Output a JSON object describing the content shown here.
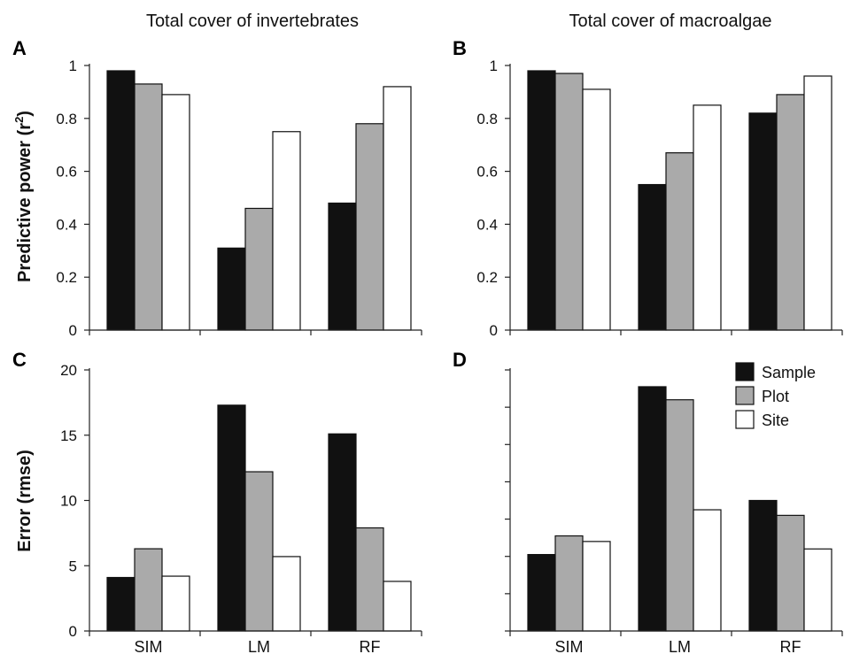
{
  "figure": {
    "col_titles": [
      "Total cover of invertebrates",
      "Total cover of macroalgae"
    ],
    "ylabel_top": "Predictive power (r²)",
    "ylabel_top_main": "Predictive power (r",
    "ylabel_top_sup": "2",
    "ylabel_top_close": ")",
    "ylabel_bottom": "Error (rmse)"
  },
  "legend": {
    "items": [
      {
        "label": "Sample",
        "color": "#111111"
      },
      {
        "label": "Plot",
        "color": "#aaaaaa"
      },
      {
        "label": "Site",
        "color": "#ffffff"
      }
    ]
  },
  "chart_data": [
    {
      "panel": "A",
      "type": "bar",
      "title": "Total cover of invertebrates",
      "ylabel": "Predictive power (r²)",
      "categories": [
        "SIM",
        "LM",
        "RF"
      ],
      "series": [
        {
          "name": "Sample",
          "color": "#111111",
          "values": [
            0.98,
            0.31,
            0.48
          ]
        },
        {
          "name": "Plot",
          "color": "#aaaaaa",
          "values": [
            0.93,
            0.46,
            0.78
          ]
        },
        {
          "name": "Site",
          "color": "#ffffff",
          "values": [
            0.89,
            0.75,
            0.92
          ]
        }
      ],
      "ylim": [
        0,
        1
      ],
      "yticks": [
        0,
        0.2,
        0.4,
        0.6,
        0.8,
        1
      ],
      "ytick_labels": [
        "0",
        "0.2",
        "0.4",
        "0.6",
        "0.8",
        "1"
      ],
      "xtick_labels": []
    },
    {
      "panel": "B",
      "type": "bar",
      "title": "Total cover of macroalgae",
      "categories": [
        "SIM",
        "LM",
        "RF"
      ],
      "series": [
        {
          "name": "Sample",
          "color": "#111111",
          "values": [
            0.98,
            0.55,
            0.82
          ]
        },
        {
          "name": "Plot",
          "color": "#aaaaaa",
          "values": [
            0.97,
            0.67,
            0.89
          ]
        },
        {
          "name": "Site",
          "color": "#ffffff",
          "values": [
            0.91,
            0.85,
            0.96
          ]
        }
      ],
      "ylim": [
        0,
        1
      ],
      "yticks": [
        0,
        0.2,
        0.4,
        0.6,
        0.8,
        1
      ],
      "ytick_labels": [
        "0",
        "0.2",
        "0.4",
        "0.6",
        "0.8",
        "1"
      ],
      "xtick_labels": []
    },
    {
      "panel": "C",
      "type": "bar",
      "ylabel": "Error (rmse)",
      "categories": [
        "SIM",
        "LM",
        "RF"
      ],
      "series": [
        {
          "name": "Sample",
          "color": "#111111",
          "values": [
            4.1,
            17.3,
            15.1
          ]
        },
        {
          "name": "Plot",
          "color": "#aaaaaa",
          "values": [
            6.3,
            12.2,
            7.9
          ]
        },
        {
          "name": "Site",
          "color": "#ffffff",
          "values": [
            4.2,
            5.7,
            3.8
          ]
        }
      ],
      "ylim": [
        0,
        20
      ],
      "yticks": [
        0,
        5,
        10,
        15,
        20
      ],
      "ytick_labels": [
        "0",
        "5",
        "10",
        "15",
        "20"
      ],
      "xtick_labels": [
        "SIM",
        "LM",
        "RF"
      ]
    },
    {
      "panel": "D",
      "type": "bar",
      "categories": [
        "SIM",
        "LM",
        "RF"
      ],
      "series": [
        {
          "name": "Sample",
          "color": "#111111",
          "values": [
            2.05,
            6.55,
            3.5
          ]
        },
        {
          "name": "Plot",
          "color": "#aaaaaa",
          "values": [
            2.55,
            6.2,
            3.1
          ]
        },
        {
          "name": "Site",
          "color": "#ffffff",
          "values": [
            2.4,
            3.25,
            2.2
          ]
        }
      ],
      "ylim": [
        0,
        7
      ],
      "yticks": [
        0,
        1,
        2,
        3,
        4,
        5,
        6,
        7
      ],
      "ytick_labels": [],
      "xtick_labels": [
        "SIM",
        "LM",
        "RF"
      ]
    }
  ]
}
